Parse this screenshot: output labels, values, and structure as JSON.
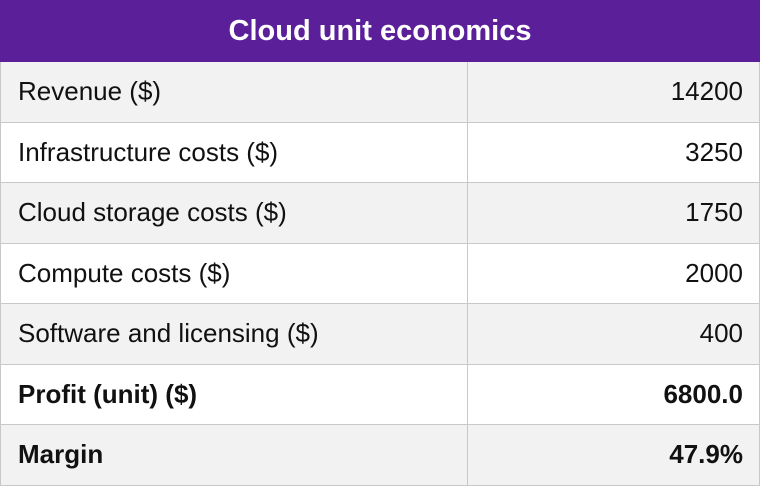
{
  "chart_data": {
    "type": "table",
    "title": "Cloud unit economics",
    "rows": [
      {
        "label": "Revenue ($)",
        "value": "14200",
        "bold": false
      },
      {
        "label": "Infrastructure costs ($)",
        "value": "3250",
        "bold": false
      },
      {
        "label": "Cloud storage costs ($)",
        "value": "1750",
        "bold": false
      },
      {
        "label": "Compute costs ($)",
        "value": "2000",
        "bold": false
      },
      {
        "label": "Software and licensing ($)",
        "value": "400",
        "bold": false
      },
      {
        "label": "Profit (unit) ($)",
        "value": "6800.0",
        "bold": true
      },
      {
        "label": "Margin",
        "value": "47.9%",
        "bold": true
      }
    ]
  },
  "colors": {
    "header_background": "#5b1f9a",
    "header_text": "#ffffff",
    "stripe": "#f2f2f2",
    "border": "#c8c8c8"
  }
}
